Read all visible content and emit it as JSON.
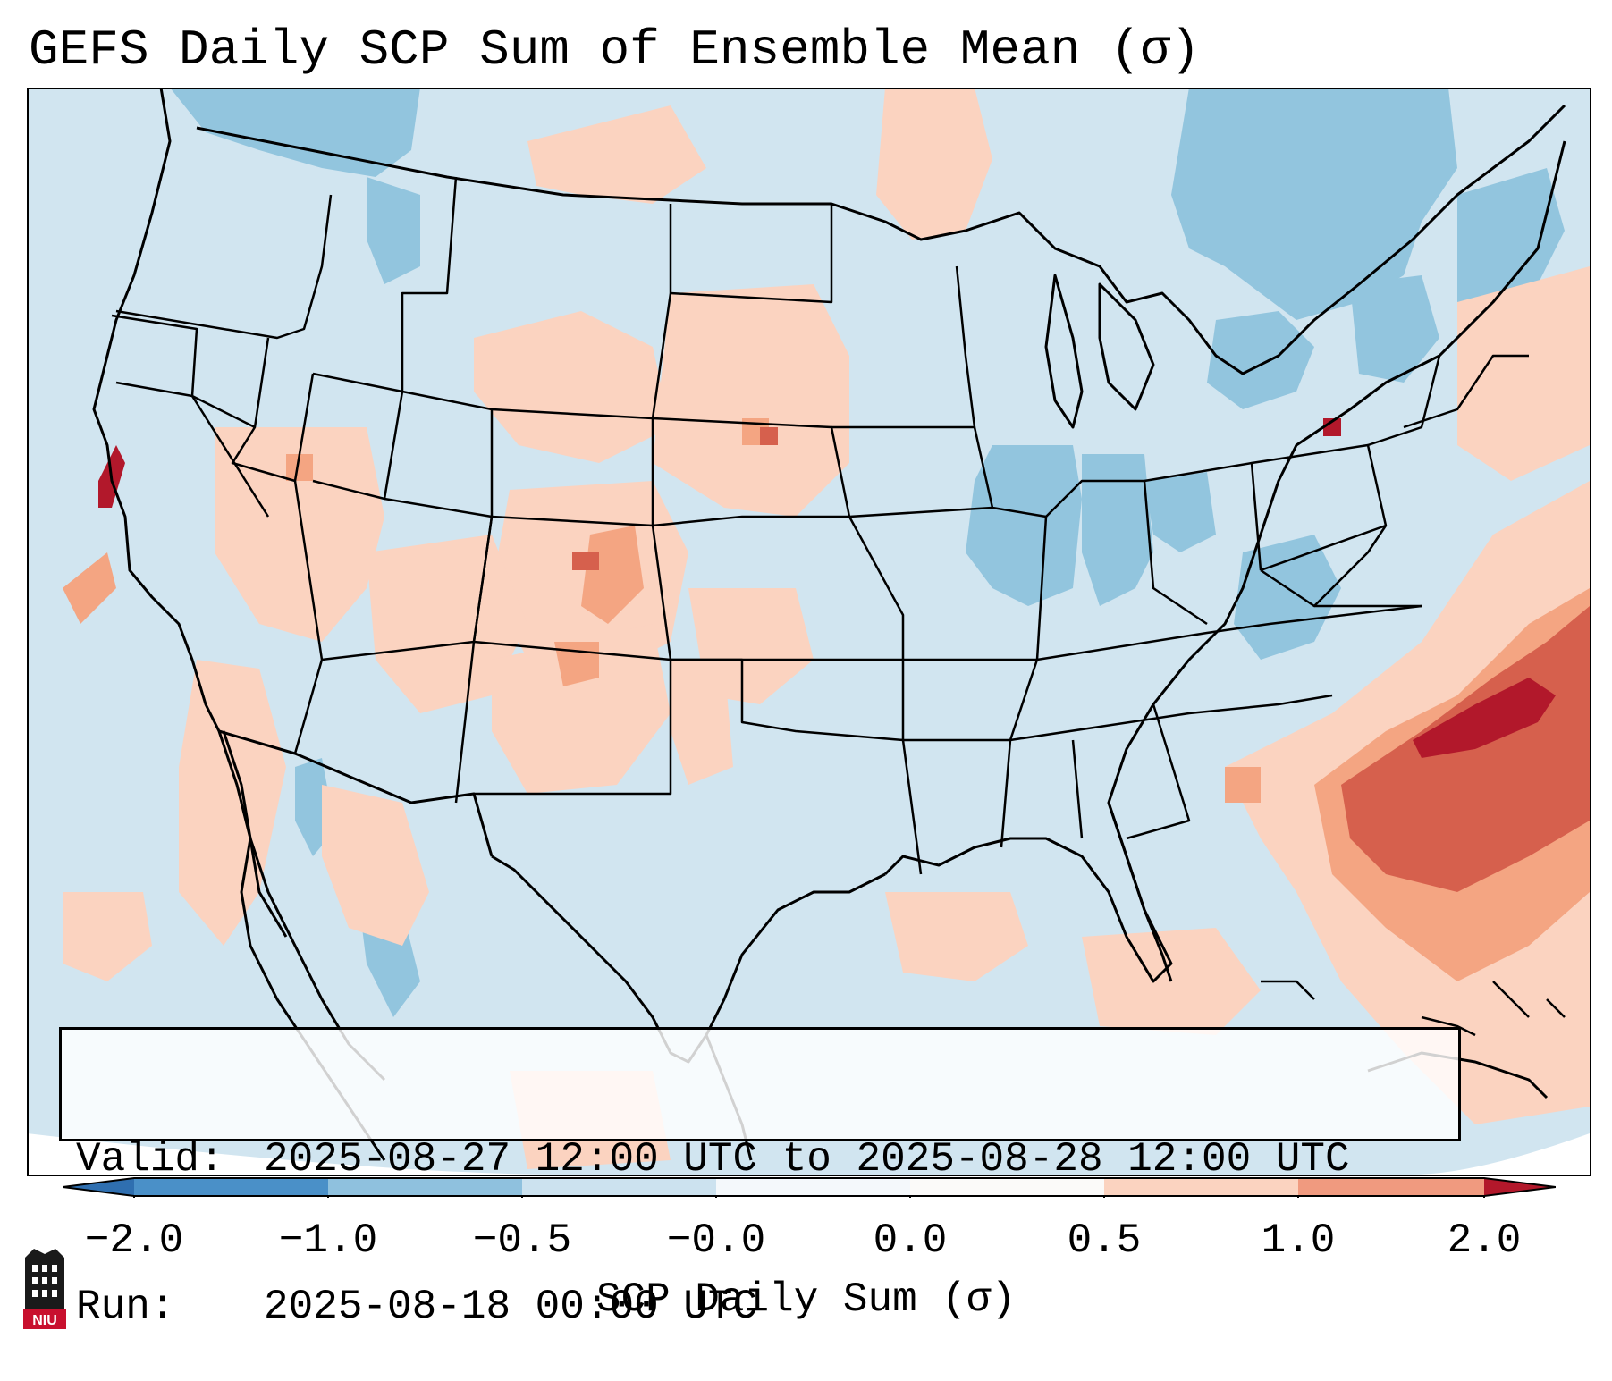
{
  "title": "GEFS Daily SCP Sum of Ensemble Mean (σ)",
  "valid_label": "Valid:",
  "valid_value": "2025-08-27 12:00 UTC to 2025-08-28 12:00 UTC",
  "run_label": "Run:",
  "run_value": "2025-08-18 00:00 UTC",
  "colorbar": {
    "label": "SCP Daily Sum (σ)",
    "tick_labels": [
      "−2.0",
      "−1.0",
      "−0.5",
      "−0.0",
      "0.0",
      "0.5",
      "1.0",
      "2.0"
    ],
    "bin_colors": [
      "#4a90c8",
      "#8fc1de",
      "#cce2ef",
      "#f4f8fb",
      "#fbfaf9",
      "#fbd3c0",
      "#f09a7f",
      "#d4544a"
    ],
    "extend_low_color": "#2f6fb0",
    "extend_high_color": "#b2182b"
  },
  "map": {
    "background_color": "#d1e5f0",
    "line_color": "#000000"
  },
  "logo": {
    "text": "NIU"
  }
}
